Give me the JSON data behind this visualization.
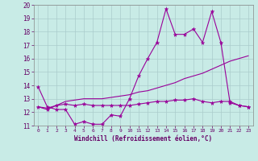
{
  "xlabel": "Windchill (Refroidissement éolien,°C)",
  "background_color": "#c8ebe6",
  "grid_color": "#aacccc",
  "line_color": "#990099",
  "x_values": [
    0,
    1,
    2,
    3,
    4,
    5,
    6,
    7,
    8,
    9,
    10,
    11,
    12,
    13,
    14,
    15,
    16,
    17,
    18,
    19,
    20,
    21,
    22,
    23
  ],
  "series1": [
    13.9,
    12.4,
    12.2,
    12.2,
    11.1,
    11.3,
    11.1,
    11.1,
    11.8,
    11.7,
    13.0,
    14.7,
    16.0,
    17.2,
    19.7,
    17.8,
    17.8,
    18.2,
    17.2,
    19.5,
    17.2,
    12.7,
    12.5,
    12.4
  ],
  "series2": [
    12.4,
    12.2,
    12.5,
    12.6,
    12.5,
    12.6,
    12.5,
    12.5,
    12.5,
    12.5,
    12.5,
    12.6,
    12.7,
    12.8,
    12.8,
    12.9,
    12.9,
    13.0,
    12.8,
    12.7,
    12.8,
    12.8,
    12.5,
    12.4
  ],
  "series3": [
    12.4,
    12.3,
    12.5,
    12.8,
    12.9,
    13.0,
    13.0,
    13.0,
    13.1,
    13.2,
    13.3,
    13.5,
    13.6,
    13.8,
    14.0,
    14.2,
    14.5,
    14.7,
    14.9,
    15.2,
    15.5,
    15.8,
    16.0,
    16.2
  ],
  "ylim": [
    11,
    20
  ],
  "xlim": [
    -0.5,
    23.5
  ],
  "yticks": [
    11,
    12,
    13,
    14,
    15,
    16,
    17,
    18,
    19,
    20
  ],
  "xticks": [
    0,
    1,
    2,
    3,
    4,
    5,
    6,
    7,
    8,
    9,
    10,
    11,
    12,
    13,
    14,
    15,
    16,
    17,
    18,
    19,
    20,
    21,
    22,
    23
  ]
}
